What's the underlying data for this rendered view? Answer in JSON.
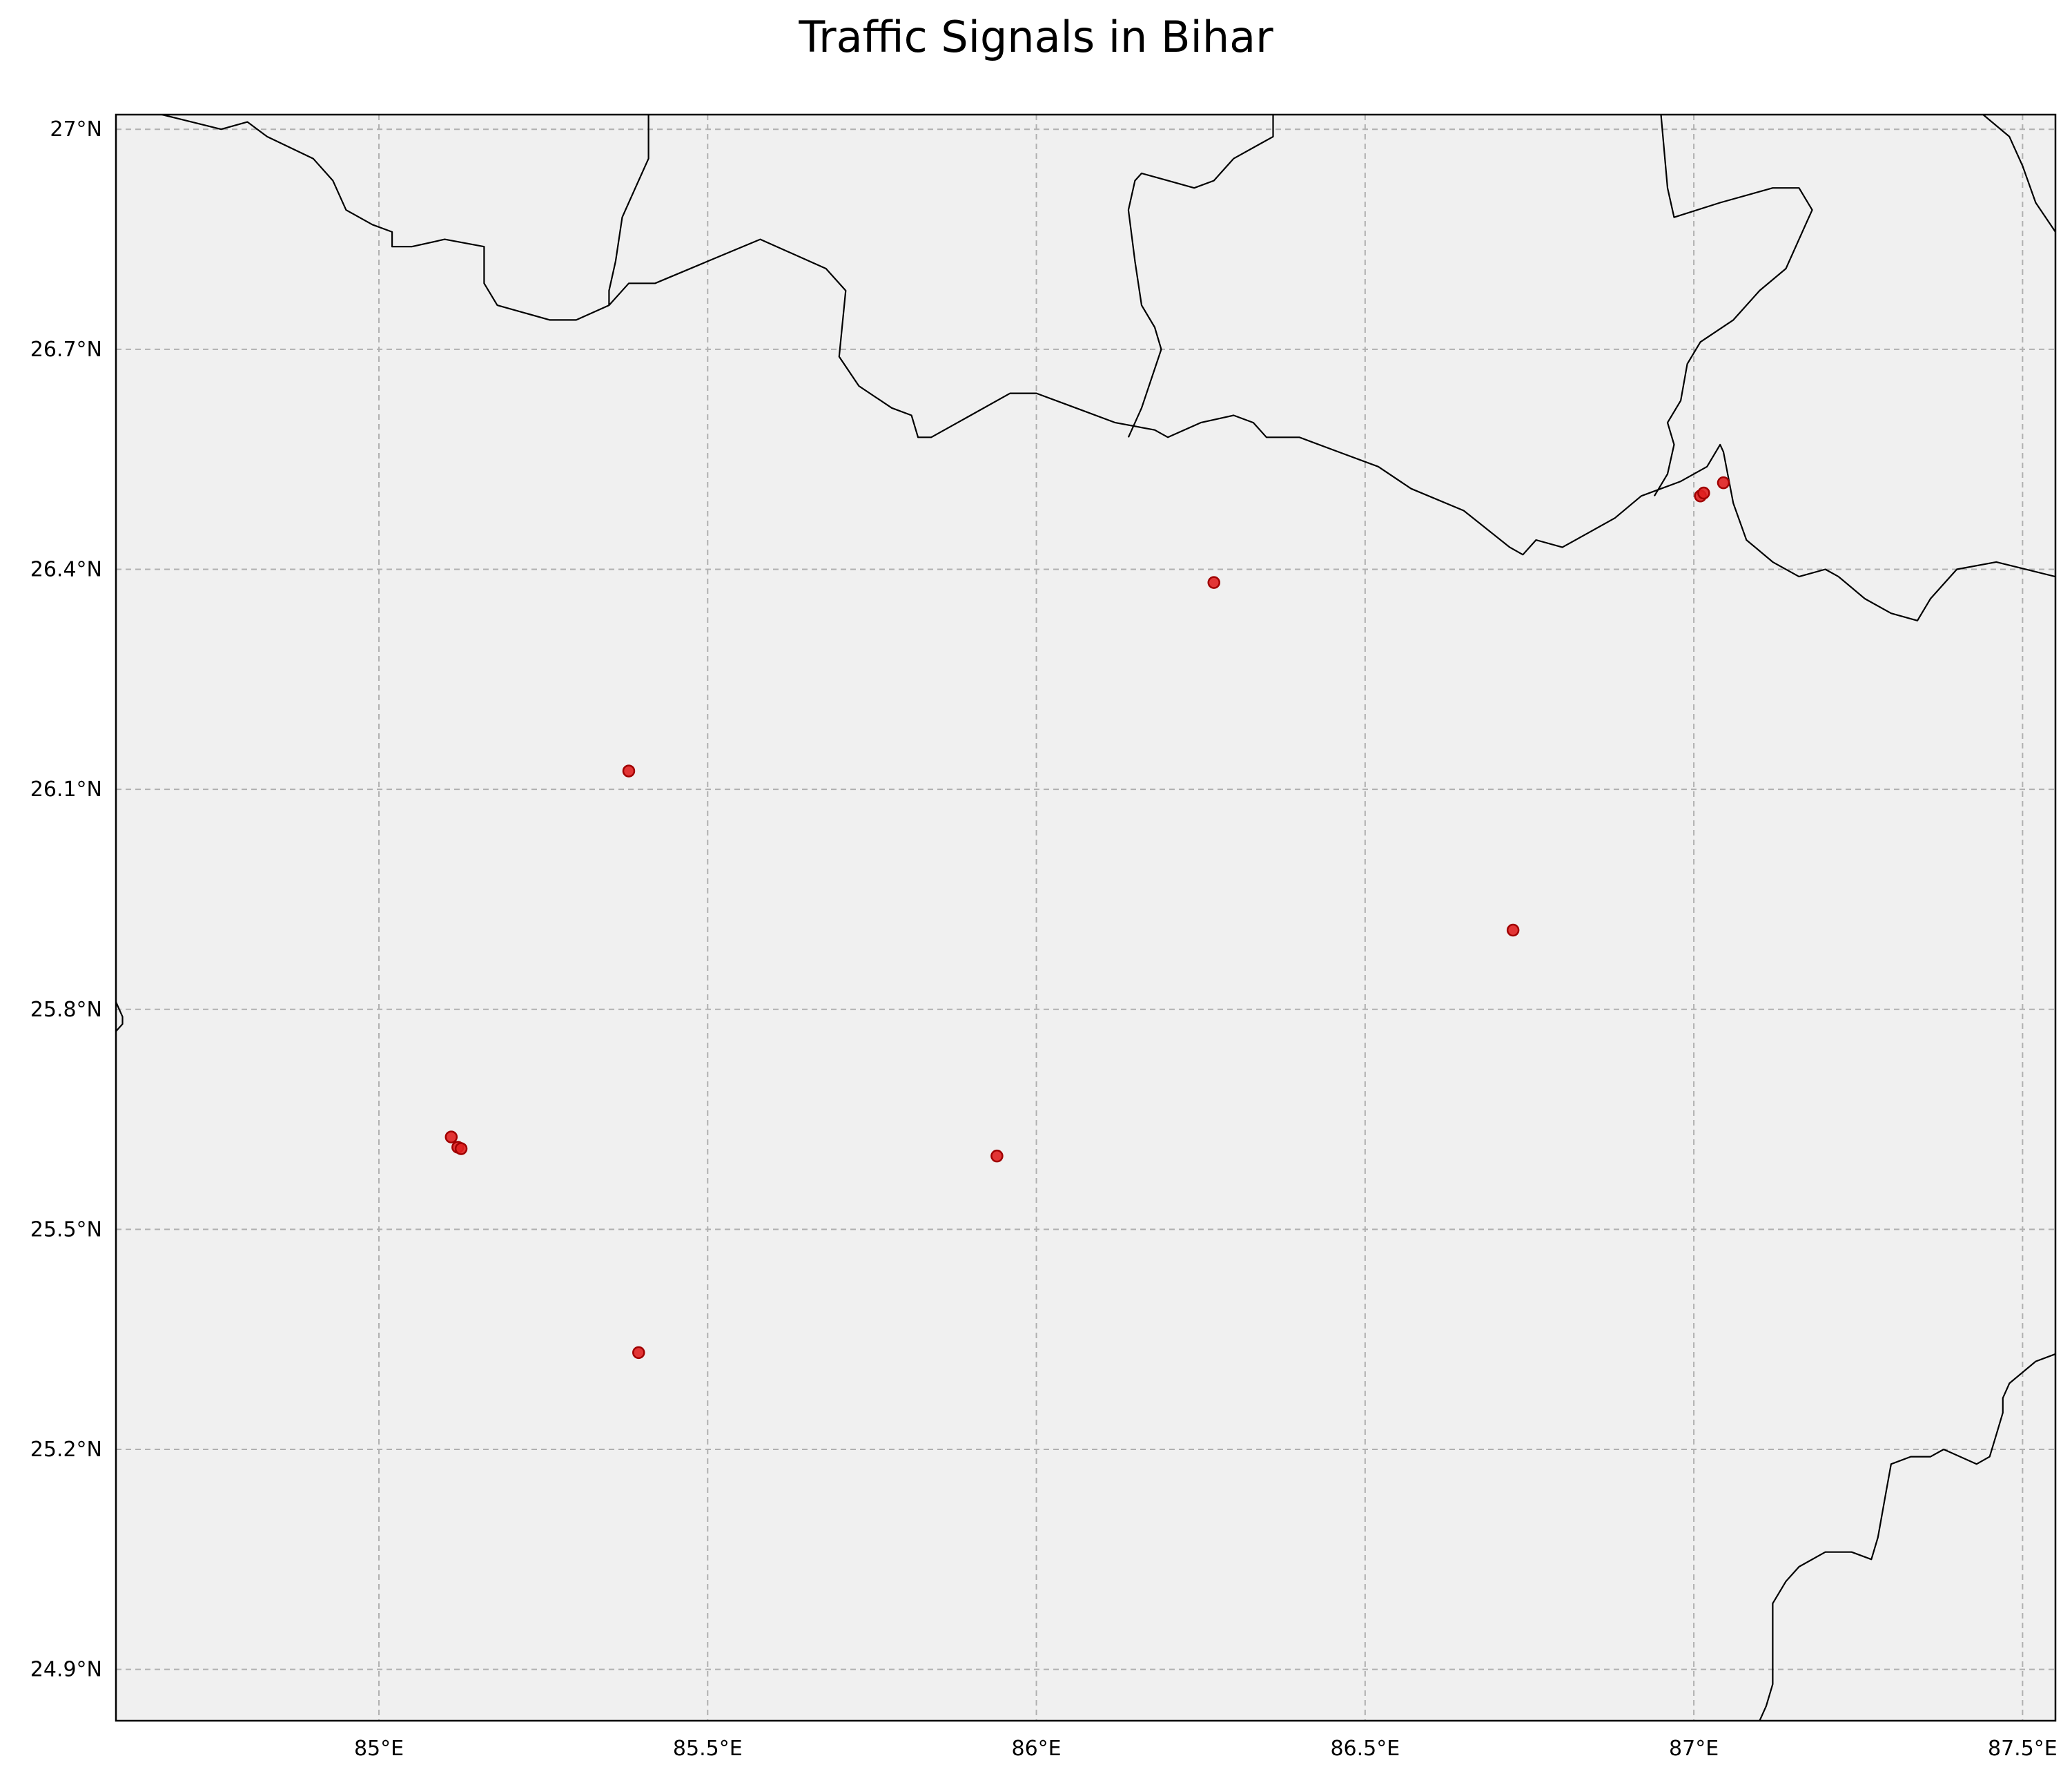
{
  "title": "Traffic Signals in Bihar",
  "map": {
    "projection": "plate-carree",
    "lon_range": [
      84.6,
      87.55
    ],
    "lat_range": [
      24.83,
      27.02
    ],
    "background_color": "#f0f0f0",
    "gridlines": true,
    "gridline_style": "dashed-gray",
    "border_color": "#000000",
    "lon_ticks": [
      {
        "value": 85.0,
        "label": "85°E"
      },
      {
        "value": 85.5,
        "label": "85.5°E"
      },
      {
        "value": 86.0,
        "label": "86°E"
      },
      {
        "value": 86.5,
        "label": "86.5°E"
      },
      {
        "value": 87.0,
        "label": "87°E"
      },
      {
        "value": 87.5,
        "label": "87.5°E"
      }
    ],
    "lat_ticks": [
      {
        "value": 24.9,
        "label": "24.9°N"
      },
      {
        "value": 25.2,
        "label": "25.2°N"
      },
      {
        "value": 25.5,
        "label": "25.5°N"
      },
      {
        "value": 25.8,
        "label": "25.8°N"
      },
      {
        "value": 26.1,
        "label": "26.1°N"
      },
      {
        "value": 26.4,
        "label": "26.4°N"
      },
      {
        "value": 26.7,
        "label": "26.7°N"
      },
      {
        "value": 27.0,
        "label": "27°N"
      }
    ],
    "marker_color": "#e02020",
    "marker_edge_color": "#a00000",
    "points": [
      {
        "lon": 85.11,
        "lat": 25.626
      },
      {
        "lon": 85.12,
        "lat": 25.612
      },
      {
        "lon": 85.125,
        "lat": 25.61
      },
      {
        "lon": 85.38,
        "lat": 26.125
      },
      {
        "lon": 85.395,
        "lat": 25.332
      },
      {
        "lon": 85.94,
        "lat": 25.6
      },
      {
        "lon": 86.27,
        "lat": 26.382
      },
      {
        "lon": 86.725,
        "lat": 25.908
      },
      {
        "lon": 87.01,
        "lat": 26.5
      },
      {
        "lon": 87.015,
        "lat": 26.504
      },
      {
        "lon": 87.045,
        "lat": 26.518
      }
    ],
    "borders": [
      [
        [
          84.67,
          27.02
        ],
        [
          84.76,
          27.0
        ],
        [
          84.8,
          27.01
        ],
        [
          84.83,
          26.99
        ],
        [
          84.9,
          26.96
        ],
        [
          84.93,
          26.93
        ],
        [
          84.95,
          26.89
        ],
        [
          84.99,
          26.87
        ],
        [
          85.02,
          26.86
        ],
        [
          85.02,
          26.84
        ],
        [
          85.05,
          26.84
        ],
        [
          85.1,
          26.85
        ],
        [
          85.16,
          26.84
        ],
        [
          85.16,
          26.79
        ],
        [
          85.18,
          26.76
        ],
        [
          85.26,
          26.74
        ],
        [
          85.3,
          26.74
        ],
        [
          85.35,
          26.76
        ],
        [
          85.38,
          26.79
        ],
        [
          85.42,
          26.79
        ],
        [
          85.5,
          26.82
        ],
        [
          85.58,
          26.85
        ],
        [
          85.68,
          26.81
        ],
        [
          85.71,
          26.78
        ],
        [
          85.7,
          26.69
        ],
        [
          85.73,
          26.65
        ],
        [
          85.78,
          26.62
        ],
        [
          85.81,
          26.61
        ],
        [
          85.82,
          26.58
        ],
        [
          85.84,
          26.58
        ],
        [
          85.9,
          26.61
        ],
        [
          85.96,
          26.64
        ],
        [
          86.0,
          26.64
        ],
        [
          86.06,
          26.62
        ],
        [
          86.12,
          26.6
        ],
        [
          86.18,
          26.59
        ],
        [
          86.2,
          26.58
        ],
        [
          86.25,
          26.6
        ],
        [
          86.3,
          26.61
        ],
        [
          86.33,
          26.6
        ],
        [
          86.35,
          26.58
        ],
        [
          86.4,
          26.58
        ],
        [
          86.46,
          26.56
        ],
        [
          86.52,
          26.54
        ],
        [
          86.57,
          26.51
        ],
        [
          86.65,
          26.48
        ],
        [
          86.72,
          26.43
        ],
        [
          86.74,
          26.42
        ],
        [
          86.76,
          26.44
        ],
        [
          86.8,
          26.43
        ],
        [
          86.84,
          26.45
        ],
        [
          86.88,
          26.47
        ],
        [
          86.92,
          26.5
        ],
        [
          86.98,
          26.52
        ],
        [
          87.02,
          26.54
        ],
        [
          87.04,
          26.57
        ],
        [
          87.045,
          26.56
        ],
        [
          87.06,
          26.49
        ],
        [
          87.08,
          26.44
        ],
        [
          87.12,
          26.41
        ],
        [
          87.16,
          26.39
        ],
        [
          87.2,
          26.4
        ],
        [
          87.22,
          26.39
        ],
        [
          87.26,
          26.36
        ],
        [
          87.3,
          26.34
        ],
        [
          87.34,
          26.33
        ],
        [
          87.36,
          26.36
        ],
        [
          87.4,
          26.4
        ],
        [
          87.46,
          26.41
        ],
        [
          87.55,
          26.39
        ]
      ],
      [
        [
          85.41,
          27.02
        ],
        [
          85.41,
          26.96
        ],
        [
          85.39,
          26.92
        ],
        [
          85.37,
          26.88
        ],
        [
          85.36,
          26.82
        ],
        [
          85.35,
          26.78
        ],
        [
          85.35,
          26.76
        ]
      ],
      [
        [
          86.36,
          27.02
        ],
        [
          86.36,
          26.99
        ],
        [
          86.34,
          26.98
        ],
        [
          86.3,
          26.96
        ],
        [
          86.27,
          26.93
        ],
        [
          86.24,
          26.92
        ],
        [
          86.2,
          26.93
        ],
        [
          86.16,
          26.94
        ],
        [
          86.15,
          26.93
        ],
        [
          86.14,
          26.89
        ],
        [
          86.15,
          26.82
        ],
        [
          86.16,
          26.76
        ],
        [
          86.18,
          26.73
        ],
        [
          86.19,
          26.7
        ],
        [
          86.16,
          26.62
        ],
        [
          86.14,
          26.58
        ]
      ],
      [
        [
          86.94,
          26.5
        ],
        [
          86.96,
          26.53
        ],
        [
          86.97,
          26.57
        ],
        [
          86.96,
          26.6
        ],
        [
          86.98,
          26.63
        ],
        [
          86.99,
          26.68
        ],
        [
          87.01,
          26.71
        ],
        [
          87.06,
          26.74
        ],
        [
          87.1,
          26.78
        ],
        [
          87.14,
          26.81
        ],
        [
          87.16,
          26.85
        ],
        [
          87.17,
          26.87
        ],
        [
          87.18,
          26.89
        ],
        [
          87.16,
          26.92
        ],
        [
          87.12,
          26.92
        ],
        [
          87.04,
          26.9
        ],
        [
          86.97,
          26.88
        ],
        [
          86.96,
          26.92
        ],
        [
          86.95,
          27.02
        ]
      ],
      [
        [
          87.44,
          27.02
        ],
        [
          87.48,
          26.99
        ],
        [
          87.5,
          26.95
        ],
        [
          87.52,
          26.9
        ],
        [
          87.55,
          26.86
        ]
      ],
      [
        [
          84.6,
          25.81
        ],
        [
          84.61,
          25.79
        ],
        [
          84.61,
          25.78
        ],
        [
          84.6,
          25.77
        ]
      ],
      [
        [
          87.1,
          24.83
        ],
        [
          87.11,
          24.85
        ],
        [
          87.12,
          24.88
        ],
        [
          87.12,
          24.92
        ],
        [
          87.12,
          24.99
        ],
        [
          87.14,
          25.02
        ],
        [
          87.16,
          25.04
        ],
        [
          87.2,
          25.06
        ],
        [
          87.24,
          25.06
        ],
        [
          87.27,
          25.05
        ],
        [
          87.28,
          25.08
        ],
        [
          87.29,
          25.13
        ],
        [
          87.3,
          25.18
        ],
        [
          87.33,
          25.19
        ],
        [
          87.36,
          25.19
        ],
        [
          87.38,
          25.2
        ],
        [
          87.43,
          25.18
        ],
        [
          87.45,
          25.19
        ],
        [
          87.46,
          25.22
        ],
        [
          87.47,
          25.25
        ],
        [
          87.47,
          25.27
        ],
        [
          87.48,
          25.29
        ],
        [
          87.52,
          25.32
        ],
        [
          87.55,
          25.33
        ]
      ]
    ]
  }
}
